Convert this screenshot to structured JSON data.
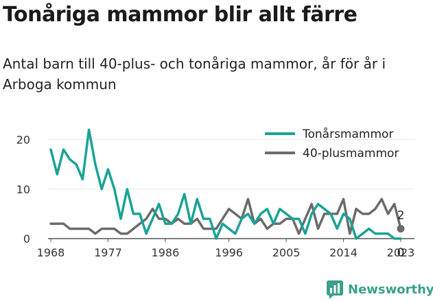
{
  "header": {
    "title": "Tonåriga mammor blir allt färre",
    "subtitle": "Antal barn till 40-plus- och tonåriga mammor, år för år i Arboga kommun"
  },
  "brand": {
    "name": "Newsworthy",
    "icon": "newsworthy-chart-icon",
    "color": "#3a9f8c"
  },
  "chart_data": {
    "type": "line",
    "x": [
      1968,
      1969,
      1970,
      1971,
      1972,
      1973,
      1974,
      1975,
      1976,
      1977,
      1978,
      1979,
      1980,
      1981,
      1982,
      1983,
      1984,
      1985,
      1986,
      1987,
      1988,
      1989,
      1990,
      1991,
      1992,
      1993,
      1994,
      1995,
      1996,
      1997,
      1998,
      1999,
      2000,
      2001,
      2002,
      2003,
      2004,
      2005,
      2006,
      2007,
      2008,
      2009,
      2010,
      2011,
      2012,
      2013,
      2014,
      2015,
      2016,
      2017,
      2018,
      2019,
      2020,
      2021,
      2022,
      2023
    ],
    "series": [
      {
        "name": "Tonårsmammor",
        "color": "#1aa395",
        "values": [
          18,
          13,
          18,
          16,
          15,
          12,
          22,
          15,
          10,
          14,
          10,
          4,
          10,
          5,
          5,
          1,
          4,
          7,
          3,
          3,
          5,
          9,
          3,
          8,
          4,
          4,
          0,
          3,
          2,
          1,
          4,
          5,
          3,
          5,
          6,
          3,
          6,
          5,
          4,
          4,
          1,
          5,
          7,
          6,
          5,
          2,
          5,
          4,
          0,
          1,
          2,
          1,
          1,
          1,
          0,
          0
        ]
      },
      {
        "name": "40-plusmammor",
        "color": "#6b6b6e",
        "values": [
          3,
          3,
          3,
          2,
          2,
          2,
          2,
          1,
          2,
          2,
          2,
          1,
          1,
          2,
          3,
          4,
          6,
          4,
          4,
          3,
          4,
          3,
          3,
          4,
          2,
          2,
          2,
          4,
          6,
          5,
          4,
          8,
          3,
          4,
          2,
          3,
          3,
          4,
          4,
          1,
          4,
          7,
          2,
          5,
          5,
          5,
          8,
          1,
          6,
          5,
          5,
          6,
          8,
          5,
          7,
          2
        ]
      }
    ],
    "end_labels": {
      "40-plusmammor": "2",
      "Tonårsmammor": "0"
    },
    "xticks": [
      "1968",
      "1977",
      "1986",
      "1996",
      "2005",
      "2014",
      "2023"
    ],
    "yticks": [
      "0",
      "10",
      "20"
    ],
    "ylim": [
      0,
      23
    ],
    "xlim": [
      1968,
      2023
    ],
    "grid": "horizontal",
    "legend_position": "top-right"
  }
}
